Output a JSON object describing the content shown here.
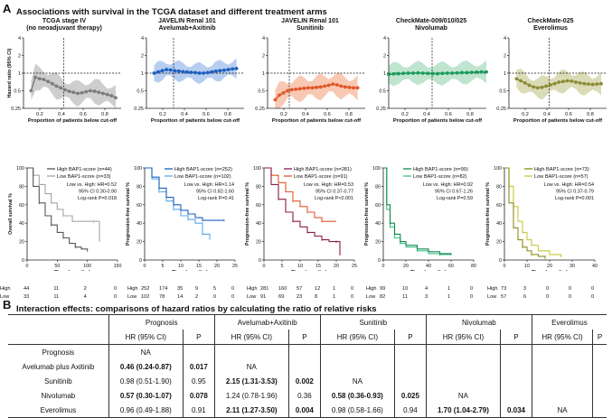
{
  "sectionA": {
    "letter": "A",
    "heading": "Associations with survival in the TCGA dataset and different treatment arms"
  },
  "hr_plots": [
    {
      "title1": "TCGA stage IV",
      "title2": "(no neoadjuvant therapy)",
      "color": "#7d7d7d",
      "band": "#bdbdbd",
      "cutoff": 0.42,
      "curve": [
        0.5,
        0.85,
        0.8,
        0.78,
        0.72,
        0.66,
        0.6,
        0.56,
        0.52,
        0.49,
        0.47,
        0.45,
        0.46,
        0.48,
        0.5,
        0.49,
        0.47,
        0.45,
        0.43,
        0.41,
        0.38
      ],
      "xstart": 0.12,
      "xend": 0.9,
      "bandw": 0.55
    },
    {
      "title1": "JAVELIN Renal 101",
      "title2": "Avelumab+Axitinib",
      "color": "#1f5fbf",
      "band": "#9dbde9",
      "cutoff": 0.3,
      "curve": [
        1.0,
        1.05,
        1.1,
        1.15,
        1.13,
        1.1,
        1.08,
        1.06,
        1.05,
        1.03,
        1.02,
        1.0,
        1.0,
        1.02,
        1.05,
        1.08,
        1.1,
        1.12,
        1.15,
        1.18,
        1.2
      ],
      "xstart": 0.12,
      "xend": 0.88,
      "bandw": 0.45
    },
    {
      "title1": "JAVELIN Renal 101",
      "title2": "Sunitinib",
      "color": "#e0562a",
      "band": "#f5b598",
      "cutoff": 0.25,
      "curve": [
        0.35,
        0.42,
        0.46,
        0.5,
        0.52,
        0.53,
        0.54,
        0.55,
        0.56,
        0.56,
        0.57,
        0.58,
        0.6,
        0.62,
        0.65,
        0.63,
        0.6,
        0.58,
        0.57,
        0.56,
        0.56
      ],
      "xstart": 0.12,
      "xend": 0.88,
      "bandw": 0.55
    },
    {
      "title1": "CheckMate-009/010/025",
      "title2": "Nivolumab",
      "color": "#1b9a5a",
      "band": "#a9dcbf",
      "cutoff": 0.45,
      "curve": [
        0.95,
        0.97,
        0.98,
        0.99,
        1.0,
        1.0,
        1.01,
        1.0,
        0.99,
        0.98,
        0.98,
        0.99,
        1.0,
        1.0,
        1.01,
        1.02,
        1.02,
        1.03,
        1.04,
        1.05,
        1.05
      ],
      "xstart": 0.05,
      "xend": 0.95,
      "bandw": 0.5
    },
    {
      "title1": "CheckMate-025",
      "title2": "Everolimus",
      "color": "#8c8c3a",
      "band": "#cfcf9f",
      "cutoff": 0.42,
      "curve": [
        0.8,
        0.74,
        0.68,
        0.62,
        0.58,
        0.56,
        0.57,
        0.6,
        0.63,
        0.66,
        0.7,
        0.72,
        0.74,
        0.73,
        0.7,
        0.68,
        0.66,
        0.65,
        0.64,
        0.65,
        0.66
      ],
      "xstart": 0.12,
      "xend": 0.9,
      "bandw": 0.5
    }
  ],
  "hr_axes": {
    "ylabel": "Hazard ratio (95% CI)",
    "xlabel": "Proportion of patients below cut-off",
    "yticks": [
      "4",
      "2",
      "1",
      "0.5",
      "0.25"
    ],
    "xticks": [
      "0.2",
      "0.4",
      "0.6",
      "0.8"
    ]
  },
  "km_plots": [
    {
      "ylabel": "Overall survival %",
      "xmax": 150,
      "xticks": [
        "0",
        "50",
        "100",
        "150"
      ],
      "high_label": "High BAP1-score (n=44)",
      "low_label": "Low BAP1-score (n=33)",
      "high_color": "#555555",
      "low_color": "#a5a5a5",
      "stats": [
        "Low vs. High: HR=0.52",
        "95% CI 0.30-0.90",
        "Log-rank P=0.018"
      ],
      "high_curve": [
        [
          0,
          100
        ],
        [
          10,
          80
        ],
        [
          20,
          62
        ],
        [
          30,
          48
        ],
        [
          40,
          38
        ],
        [
          50,
          30
        ],
        [
          60,
          24
        ],
        [
          70,
          18
        ],
        [
          80,
          14
        ],
        [
          90,
          12
        ],
        [
          100,
          10
        ]
      ],
      "low_curve": [
        [
          0,
          100
        ],
        [
          10,
          92
        ],
        [
          20,
          82
        ],
        [
          30,
          72
        ],
        [
          40,
          62
        ],
        [
          50,
          55
        ],
        [
          60,
          48
        ],
        [
          75,
          42
        ],
        [
          110,
          42
        ],
        [
          120,
          20
        ]
      ],
      "risk_times": [
        "0",
        "50",
        "100",
        "150"
      ],
      "risk_high": [
        "High",
        "44",
        "11",
        "2",
        "0"
      ],
      "risk_low": [
        "Low",
        "33",
        "11",
        "4",
        "0"
      ]
    },
    {
      "ylabel": "Progression-free survival %",
      "xmax": 25,
      "xticks": [
        "0",
        "5",
        "10",
        "15",
        "20",
        "25"
      ],
      "high_label": "High BAP1-score (n=252)",
      "low_label": "Low BAP1-score (n=102)",
      "high_color": "#1f5fbf",
      "low_color": "#5aa9e6",
      "stats": [
        "Low vs. High: HR=1.14",
        "95% CI 0.82-1.60",
        "Log-rank P=0.41"
      ],
      "high_curve": [
        [
          0,
          100
        ],
        [
          2,
          90
        ],
        [
          4,
          78
        ],
        [
          6,
          68
        ],
        [
          8,
          60
        ],
        [
          10,
          54
        ],
        [
          12,
          50
        ],
        [
          14,
          46
        ],
        [
          16,
          43
        ],
        [
          20,
          43
        ],
        [
          22,
          43
        ]
      ],
      "low_curve": [
        [
          0,
          100
        ],
        [
          2,
          88
        ],
        [
          4,
          74
        ],
        [
          6,
          64
        ],
        [
          8,
          55
        ],
        [
          10,
          48
        ],
        [
          12,
          44
        ],
        [
          14,
          40
        ],
        [
          16,
          28
        ],
        [
          18,
          22
        ]
      ],
      "risk_times": [
        "0",
        "5",
        "10",
        "15",
        "20",
        "25"
      ],
      "risk_high": [
        "High",
        "252",
        "174",
        "35",
        "9",
        "5",
        "0"
      ],
      "risk_low": [
        "Low",
        "102",
        "78",
        "14",
        "2",
        "0",
        "0"
      ]
    },
    {
      "ylabel": "Progression-free survival %",
      "xmax": 25,
      "xticks": [
        "0",
        "5",
        "10",
        "15",
        "20",
        "25"
      ],
      "high_label": "High BAP1-score (n=281)",
      "low_label": "Low BAP1-score (n=91)",
      "high_color": "#8b1a4a",
      "low_color": "#e0562a",
      "stats": [
        "Low vs. High: HR=0.53",
        "95% CI 0.37-0.77",
        "Log-rank P<0.001"
      ],
      "high_curve": [
        [
          0,
          100
        ],
        [
          2,
          82
        ],
        [
          4,
          66
        ],
        [
          6,
          52
        ],
        [
          8,
          42
        ],
        [
          10,
          36
        ],
        [
          12,
          30
        ],
        [
          14,
          26
        ],
        [
          16,
          22
        ],
        [
          18,
          20
        ],
        [
          20,
          20
        ],
        [
          21,
          5
        ]
      ],
      "low_curve": [
        [
          0,
          100
        ],
        [
          2,
          92
        ],
        [
          4,
          84
        ],
        [
          6,
          74
        ],
        [
          8,
          64
        ],
        [
          10,
          58
        ],
        [
          12,
          52
        ],
        [
          14,
          46
        ],
        [
          16,
          42
        ],
        [
          20,
          42
        ]
      ],
      "risk_times": [
        "0",
        "5",
        "10",
        "15",
        "20",
        "25"
      ],
      "risk_high": [
        "High",
        "281",
        "160",
        "57",
        "12",
        "1",
        "0"
      ],
      "risk_low": [
        "Low",
        "91",
        "69",
        "23",
        "8",
        "1",
        "0"
      ]
    },
    {
      "ylabel": "Progression-free survival %",
      "xmax": 80,
      "xticks": [
        "0",
        "20",
        "40",
        "60",
        "80"
      ],
      "high_label": "High BAP1-score (n=99)",
      "low_label": "Low BAP1-score (n=82)",
      "high_color": "#138a4e",
      "low_color": "#3cc18a",
      "stats": [
        "Low vs. High: HR=0.92",
        "95% CI 0.67-1.26",
        "Log-rank P=0.59"
      ],
      "high_curve": [
        [
          0,
          100
        ],
        [
          3,
          60
        ],
        [
          6,
          40
        ],
        [
          10,
          28
        ],
        [
          15,
          20
        ],
        [
          20,
          16
        ],
        [
          30,
          12
        ],
        [
          40,
          9
        ],
        [
          50,
          7
        ],
        [
          60,
          6
        ]
      ],
      "low_curve": [
        [
          0,
          100
        ],
        [
          3,
          55
        ],
        [
          6,
          36
        ],
        [
          10,
          24
        ],
        [
          15,
          18
        ],
        [
          20,
          14
        ],
        [
          30,
          10
        ],
        [
          40,
          7
        ],
        [
          50,
          6
        ],
        [
          60,
          5
        ]
      ],
      "risk_times": [
        "0",
        "20",
        "40",
        "60",
        "80"
      ],
      "risk_high": [
        "High",
        "99",
        "10",
        "4",
        "1",
        "0"
      ],
      "risk_low": [
        "Low",
        "82",
        "11",
        "3",
        "1",
        "0"
      ]
    },
    {
      "ylabel": "Progression-free survival %",
      "xmax": 40,
      "xticks": [
        "0",
        "10",
        "20",
        "30",
        "40"
      ],
      "high_label": "High BAP1-score (n=73)",
      "low_label": "Low BAP1-score (n=57)",
      "high_color": "#8c8c1a",
      "low_color": "#c8c83c",
      "stats": [
        "Low vs. High: HR=0.54",
        "95% CI 0.37-0.79",
        "Log-rank P=0.001"
      ],
      "high_curve": [
        [
          0,
          100
        ],
        [
          2,
          62
        ],
        [
          4,
          35
        ],
        [
          6,
          22
        ],
        [
          8,
          14
        ],
        [
          10,
          10
        ],
        [
          12,
          6
        ],
        [
          15,
          4
        ],
        [
          18,
          2
        ]
      ],
      "low_curve": [
        [
          0,
          100
        ],
        [
          2,
          80
        ],
        [
          4,
          58
        ],
        [
          6,
          42
        ],
        [
          8,
          30
        ],
        [
          10,
          22
        ],
        [
          12,
          16
        ],
        [
          15,
          10
        ],
        [
          20,
          6
        ],
        [
          25,
          3
        ]
      ],
      "risk_times": [
        "0",
        "10",
        "20",
        "30",
        "40"
      ],
      "risk_high": [
        "High",
        "73",
        "3",
        "0",
        "0",
        "0"
      ],
      "risk_low": [
        "Low",
        "57",
        "6",
        "0",
        "0",
        "0"
      ]
    }
  ],
  "km_axes": {
    "xlabel": "Time (months)",
    "yticks": [
      "100",
      "80",
      "60",
      "40",
      "20",
      "0"
    ]
  },
  "sectionB": {
    "letter": "B",
    "heading": "Interaction effects: comparisons of hazard ratios by calculating the ratio of relative risks"
  },
  "table": {
    "groups": [
      "Prognosis",
      "Avelumab+Axitinib",
      "Sunitinib",
      "Nivolumab",
      "Everolimus"
    ],
    "sub_hr": "HR (95% CI)",
    "sub_p": "P",
    "rows": [
      {
        "label": "Prognosis",
        "cells": [
          [
            "NA",
            ""
          ],
          [
            "",
            ""
          ],
          [
            "",
            ""
          ],
          [
            "",
            ""
          ],
          [
            "",
            ""
          ]
        ],
        "bold": []
      },
      {
        "label": "Avelumab plus Axitinib",
        "cells": [
          [
            "0.46 (0.24-0.87)",
            "0.017"
          ],
          [
            "NA",
            ""
          ],
          [
            "",
            ""
          ],
          [
            "",
            ""
          ],
          [
            "",
            ""
          ]
        ],
        "bold": [
          0
        ]
      },
      {
        "label": "Sunitinib",
        "cells": [
          [
            "0.98 (0.51-1.90)",
            "0.95"
          ],
          [
            "2.15 (1.31-3.53)",
            "0.002"
          ],
          [
            "NA",
            ""
          ],
          [
            "",
            ""
          ],
          [
            "",
            ""
          ]
        ],
        "bold": [
          1
        ]
      },
      {
        "label": "Nivolumab",
        "cells": [
          [
            "0.57 (0.30-1.07)",
            "0.078"
          ],
          [
            "1.24 (0.78-1.96)",
            "0.36"
          ],
          [
            "0.58 (0.36-0.93)",
            "0.025"
          ],
          [
            "NA",
            ""
          ],
          [
            "",
            ""
          ]
        ],
        "bold": [
          0,
          2
        ]
      },
      {
        "label": "Everolimus",
        "cells": [
          [
            "0.96 (0.49-1.88)",
            "0.91"
          ],
          [
            "2.11 (1.27-3.50)",
            "0.004"
          ],
          [
            "0.98 (0.58-1.66)",
            "0.94"
          ],
          [
            "1.70 (1.04-2.79)",
            "0.034"
          ],
          [
            "NA",
            ""
          ]
        ],
        "bold": [
          1,
          3
        ]
      }
    ]
  }
}
